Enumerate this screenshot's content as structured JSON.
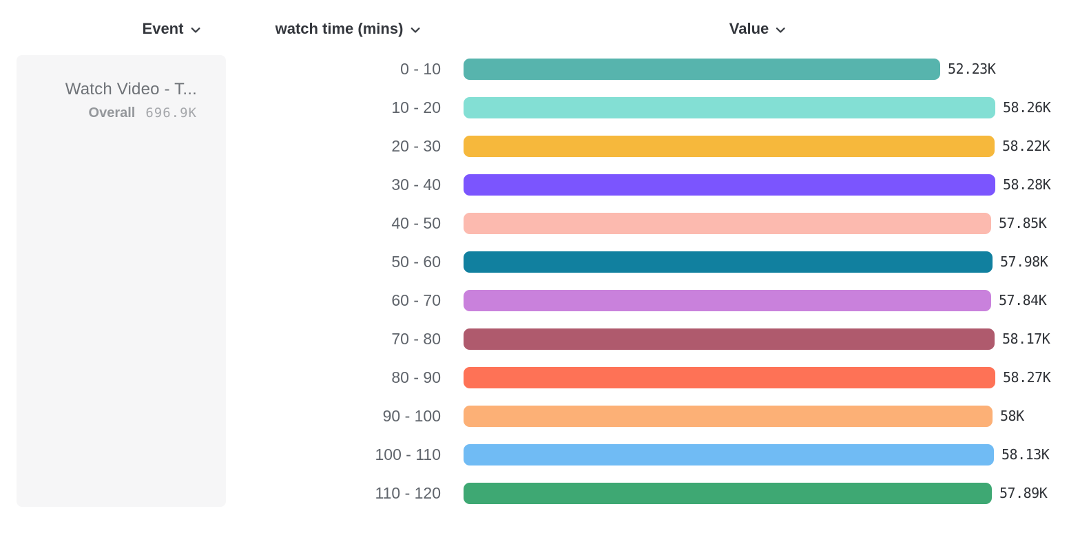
{
  "header": {
    "columns": [
      {
        "id": "event",
        "label": "Event"
      },
      {
        "id": "bucket",
        "label": "watch time (mins)"
      },
      {
        "id": "value",
        "label": "Value"
      }
    ]
  },
  "event_card": {
    "title": "Watch Video - T...",
    "overall_label": "Overall",
    "overall_value": "696.9K"
  },
  "chart_data": {
    "type": "bar",
    "orientation": "horizontal",
    "title": "",
    "xlabel": "Value",
    "ylabel": "watch time (mins)",
    "xlim": [
      0,
      58280
    ],
    "grid": false,
    "legend_position": "left-card",
    "categories": [
      "0 - 10",
      "10 - 20",
      "20 - 30",
      "30 - 40",
      "40 - 50",
      "50 - 60",
      "60 - 70",
      "70 - 80",
      "80 - 90",
      "90 - 100",
      "100 - 110",
      "110 - 120"
    ],
    "values": [
      52230,
      58260,
      58220,
      58280,
      57850,
      57980,
      57840,
      58170,
      58270,
      58000,
      58130,
      57890
    ],
    "value_labels": [
      "52.23K",
      "58.26K",
      "58.22K",
      "58.28K",
      "57.85K",
      "57.98K",
      "57.84K",
      "58.17K",
      "58.27K",
      "58K",
      "58.13K",
      "57.89K"
    ],
    "colors": [
      "#57B4AD",
      "#83DFD4",
      "#F6B83C",
      "#7B55FE",
      "#FCBAAF",
      "#11809F",
      "#C981DC",
      "#AF5A6D",
      "#FE7256",
      "#FCB076",
      "#70BBF4",
      "#3EA873"
    ]
  }
}
